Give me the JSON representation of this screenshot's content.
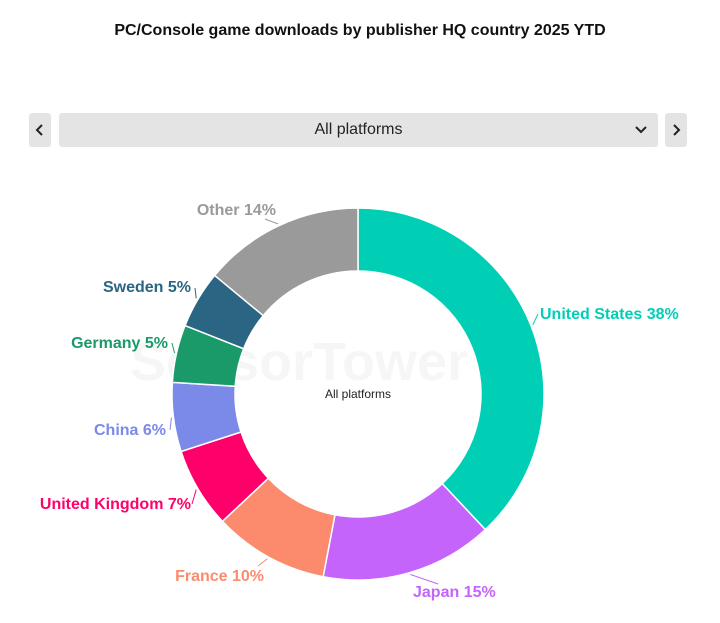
{
  "header": {
    "title": "PC/Console game downloads by publisher HQ country 2025 YTD"
  },
  "controls": {
    "prev_icon": "chevron-left-icon",
    "next_icon": "chevron-right-icon",
    "select_value": "All platforms",
    "select_icon": "chevron-down-icon"
  },
  "watermark": "SensorTower",
  "chart_data": {
    "type": "pie",
    "variant": "donut",
    "title": "PC/Console game downloads by publisher HQ country 2025 YTD",
    "center_label": "All platforms",
    "unit": "%",
    "slices": [
      {
        "name": "United States",
        "value": 38,
        "label": "United States 38%",
        "color": "#00cfb5"
      },
      {
        "name": "Japan",
        "value": 15,
        "label": "Japan 15%",
        "color": "#c564fb"
      },
      {
        "name": "France",
        "value": 10,
        "label": "France 10%",
        "color": "#fc8b6e"
      },
      {
        "name": "United Kingdom",
        "value": 7,
        "label": "United Kingdom 7%",
        "color": "#ff006b"
      },
      {
        "name": "China",
        "value": 6,
        "label": "China 6%",
        "color": "#7b8ae8"
      },
      {
        "name": "Germany",
        "value": 5,
        "label": "Germany 5%",
        "color": "#1a9a68"
      },
      {
        "name": "Sweden",
        "value": 5,
        "label": "Sweden 5%",
        "color": "#2a6583"
      },
      {
        "name": "Other",
        "value": 14,
        "label": "Other 14%",
        "color": "#9a9a9a"
      }
    ]
  }
}
